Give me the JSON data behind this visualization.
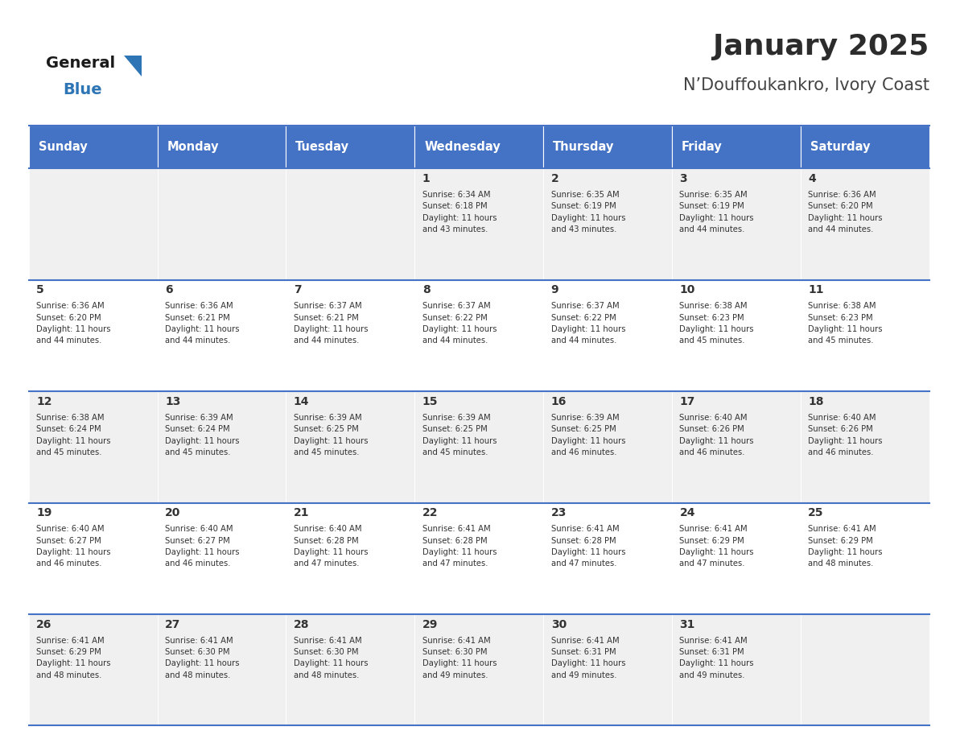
{
  "title": "January 2025",
  "subtitle": "N’Douffoukankro, Ivory Coast",
  "days_of_week": [
    "Sunday",
    "Monday",
    "Tuesday",
    "Wednesday",
    "Thursday",
    "Friday",
    "Saturday"
  ],
  "header_bg": "#4472C4",
  "header_text": "#FFFFFF",
  "cell_bg_light": "#FFFFFF",
  "cell_bg_dark": "#F0F0F0",
  "cell_border_color": "#4472C4",
  "cell_inner_border": "#CCCCCC",
  "title_color": "#2C2C2C",
  "subtitle_color": "#444444",
  "text_color": "#333333",
  "logo_general_color": "#1A1A1A",
  "logo_blue_color": "#2E75B6",
  "calendar": [
    [
      {
        "day": "",
        "info": ""
      },
      {
        "day": "",
        "info": ""
      },
      {
        "day": "",
        "info": ""
      },
      {
        "day": "1",
        "info": "Sunrise: 6:34 AM\nSunset: 6:18 PM\nDaylight: 11 hours\nand 43 minutes."
      },
      {
        "day": "2",
        "info": "Sunrise: 6:35 AM\nSunset: 6:19 PM\nDaylight: 11 hours\nand 43 minutes."
      },
      {
        "day": "3",
        "info": "Sunrise: 6:35 AM\nSunset: 6:19 PM\nDaylight: 11 hours\nand 44 minutes."
      },
      {
        "day": "4",
        "info": "Sunrise: 6:36 AM\nSunset: 6:20 PM\nDaylight: 11 hours\nand 44 minutes."
      }
    ],
    [
      {
        "day": "5",
        "info": "Sunrise: 6:36 AM\nSunset: 6:20 PM\nDaylight: 11 hours\nand 44 minutes."
      },
      {
        "day": "6",
        "info": "Sunrise: 6:36 AM\nSunset: 6:21 PM\nDaylight: 11 hours\nand 44 minutes."
      },
      {
        "day": "7",
        "info": "Sunrise: 6:37 AM\nSunset: 6:21 PM\nDaylight: 11 hours\nand 44 minutes."
      },
      {
        "day": "8",
        "info": "Sunrise: 6:37 AM\nSunset: 6:22 PM\nDaylight: 11 hours\nand 44 minutes."
      },
      {
        "day": "9",
        "info": "Sunrise: 6:37 AM\nSunset: 6:22 PM\nDaylight: 11 hours\nand 44 minutes."
      },
      {
        "day": "10",
        "info": "Sunrise: 6:38 AM\nSunset: 6:23 PM\nDaylight: 11 hours\nand 45 minutes."
      },
      {
        "day": "11",
        "info": "Sunrise: 6:38 AM\nSunset: 6:23 PM\nDaylight: 11 hours\nand 45 minutes."
      }
    ],
    [
      {
        "day": "12",
        "info": "Sunrise: 6:38 AM\nSunset: 6:24 PM\nDaylight: 11 hours\nand 45 minutes."
      },
      {
        "day": "13",
        "info": "Sunrise: 6:39 AM\nSunset: 6:24 PM\nDaylight: 11 hours\nand 45 minutes."
      },
      {
        "day": "14",
        "info": "Sunrise: 6:39 AM\nSunset: 6:25 PM\nDaylight: 11 hours\nand 45 minutes."
      },
      {
        "day": "15",
        "info": "Sunrise: 6:39 AM\nSunset: 6:25 PM\nDaylight: 11 hours\nand 45 minutes."
      },
      {
        "day": "16",
        "info": "Sunrise: 6:39 AM\nSunset: 6:25 PM\nDaylight: 11 hours\nand 46 minutes."
      },
      {
        "day": "17",
        "info": "Sunrise: 6:40 AM\nSunset: 6:26 PM\nDaylight: 11 hours\nand 46 minutes."
      },
      {
        "day": "18",
        "info": "Sunrise: 6:40 AM\nSunset: 6:26 PM\nDaylight: 11 hours\nand 46 minutes."
      }
    ],
    [
      {
        "day": "19",
        "info": "Sunrise: 6:40 AM\nSunset: 6:27 PM\nDaylight: 11 hours\nand 46 minutes."
      },
      {
        "day": "20",
        "info": "Sunrise: 6:40 AM\nSunset: 6:27 PM\nDaylight: 11 hours\nand 46 minutes."
      },
      {
        "day": "21",
        "info": "Sunrise: 6:40 AM\nSunset: 6:28 PM\nDaylight: 11 hours\nand 47 minutes."
      },
      {
        "day": "22",
        "info": "Sunrise: 6:41 AM\nSunset: 6:28 PM\nDaylight: 11 hours\nand 47 minutes."
      },
      {
        "day": "23",
        "info": "Sunrise: 6:41 AM\nSunset: 6:28 PM\nDaylight: 11 hours\nand 47 minutes."
      },
      {
        "day": "24",
        "info": "Sunrise: 6:41 AM\nSunset: 6:29 PM\nDaylight: 11 hours\nand 47 minutes."
      },
      {
        "day": "25",
        "info": "Sunrise: 6:41 AM\nSunset: 6:29 PM\nDaylight: 11 hours\nand 48 minutes."
      }
    ],
    [
      {
        "day": "26",
        "info": "Sunrise: 6:41 AM\nSunset: 6:29 PM\nDaylight: 11 hours\nand 48 minutes."
      },
      {
        "day": "27",
        "info": "Sunrise: 6:41 AM\nSunset: 6:30 PM\nDaylight: 11 hours\nand 48 minutes."
      },
      {
        "day": "28",
        "info": "Sunrise: 6:41 AM\nSunset: 6:30 PM\nDaylight: 11 hours\nand 48 minutes."
      },
      {
        "day": "29",
        "info": "Sunrise: 6:41 AM\nSunset: 6:30 PM\nDaylight: 11 hours\nand 49 minutes."
      },
      {
        "day": "30",
        "info": "Sunrise: 6:41 AM\nSunset: 6:31 PM\nDaylight: 11 hours\nand 49 minutes."
      },
      {
        "day": "31",
        "info": "Sunrise: 6:41 AM\nSunset: 6:31 PM\nDaylight: 11 hours\nand 49 minutes."
      },
      {
        "day": "",
        "info": ""
      }
    ]
  ]
}
